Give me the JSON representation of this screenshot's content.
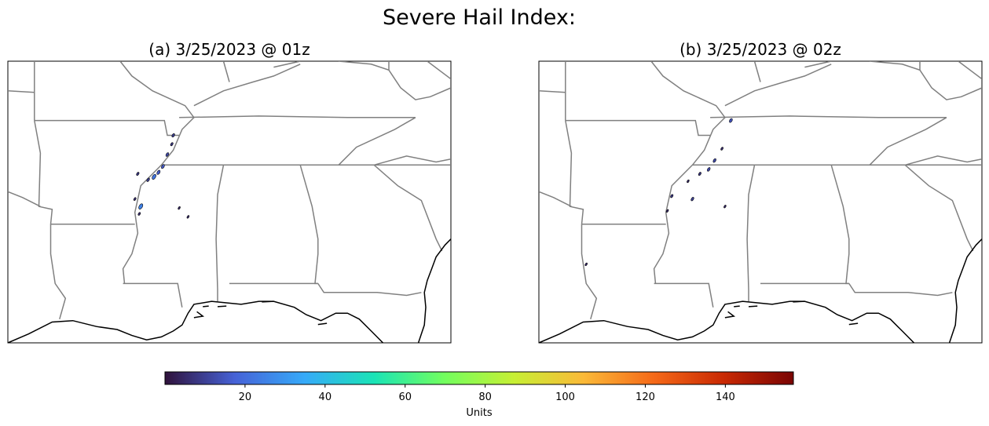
{
  "figure": {
    "title": "Severe Hail Index:"
  },
  "panels": [
    {
      "title": "(a) 3/25/2023 @ 01z",
      "hail_cells": [
        {
          "lon": -89.9,
          "lat": 36.0,
          "value": 10
        },
        {
          "lon": -89.95,
          "lat": 35.7,
          "value": 8
        },
        {
          "lon": -90.1,
          "lat": 35.35,
          "value": 12
        },
        {
          "lon": -90.25,
          "lat": 34.95,
          "value": 15
        },
        {
          "lon": -90.4,
          "lat": 34.75,
          "value": 16
        },
        {
          "lon": -90.55,
          "lat": 34.6,
          "value": 22
        },
        {
          "lon": -90.75,
          "lat": 34.5,
          "value": 10
        },
        {
          "lon": -91.1,
          "lat": 34.7,
          "value": 8
        },
        {
          "lon": -91.2,
          "lat": 33.85,
          "value": 6
        },
        {
          "lon": -91.0,
          "lat": 33.6,
          "value": 25
        },
        {
          "lon": -91.05,
          "lat": 33.35,
          "value": 6
        },
        {
          "lon": -89.7,
          "lat": 33.55,
          "value": 5
        },
        {
          "lon": -89.4,
          "lat": 33.25,
          "value": 5
        }
      ]
    },
    {
      "title": "(b) 3/25/2023 @ 02z",
      "hail_cells": [
        {
          "lon": -89.0,
          "lat": 36.5,
          "value": 14
        },
        {
          "lon": -89.3,
          "lat": 35.55,
          "value": 6
        },
        {
          "lon": -89.55,
          "lat": 35.15,
          "value": 12
        },
        {
          "lon": -89.75,
          "lat": 34.85,
          "value": 12
        },
        {
          "lon": -90.05,
          "lat": 34.7,
          "value": 8
        },
        {
          "lon": -90.45,
          "lat": 34.45,
          "value": 5
        },
        {
          "lon": -91.0,
          "lat": 33.95,
          "value": 8
        },
        {
          "lon": -90.3,
          "lat": 33.85,
          "value": 10
        },
        {
          "lon": -91.15,
          "lat": 33.45,
          "value": 5
        },
        {
          "lon": -89.2,
          "lat": 33.6,
          "value": 5
        },
        {
          "lon": -93.9,
          "lat": 31.65,
          "value": 5
        }
      ]
    }
  ],
  "colorbar": {
    "min": 0,
    "max": 157,
    "ticks": [
      20,
      40,
      60,
      80,
      100,
      120,
      140
    ],
    "label": "Units",
    "colormap": "turbo",
    "colors": [
      "#30123b",
      "#4662d7",
      "#36aaf9",
      "#1ae4b6",
      "#72fe5e",
      "#c7ef34",
      "#fbb938",
      "#f56918",
      "#c92903",
      "#7a0403"
    ]
  },
  "map": {
    "lon_range": [
      -95.5,
      -80.5
    ],
    "lat_range": [
      29.0,
      38.5
    ],
    "state_border_color": "#808080",
    "coastline_color": "#000000"
  }
}
